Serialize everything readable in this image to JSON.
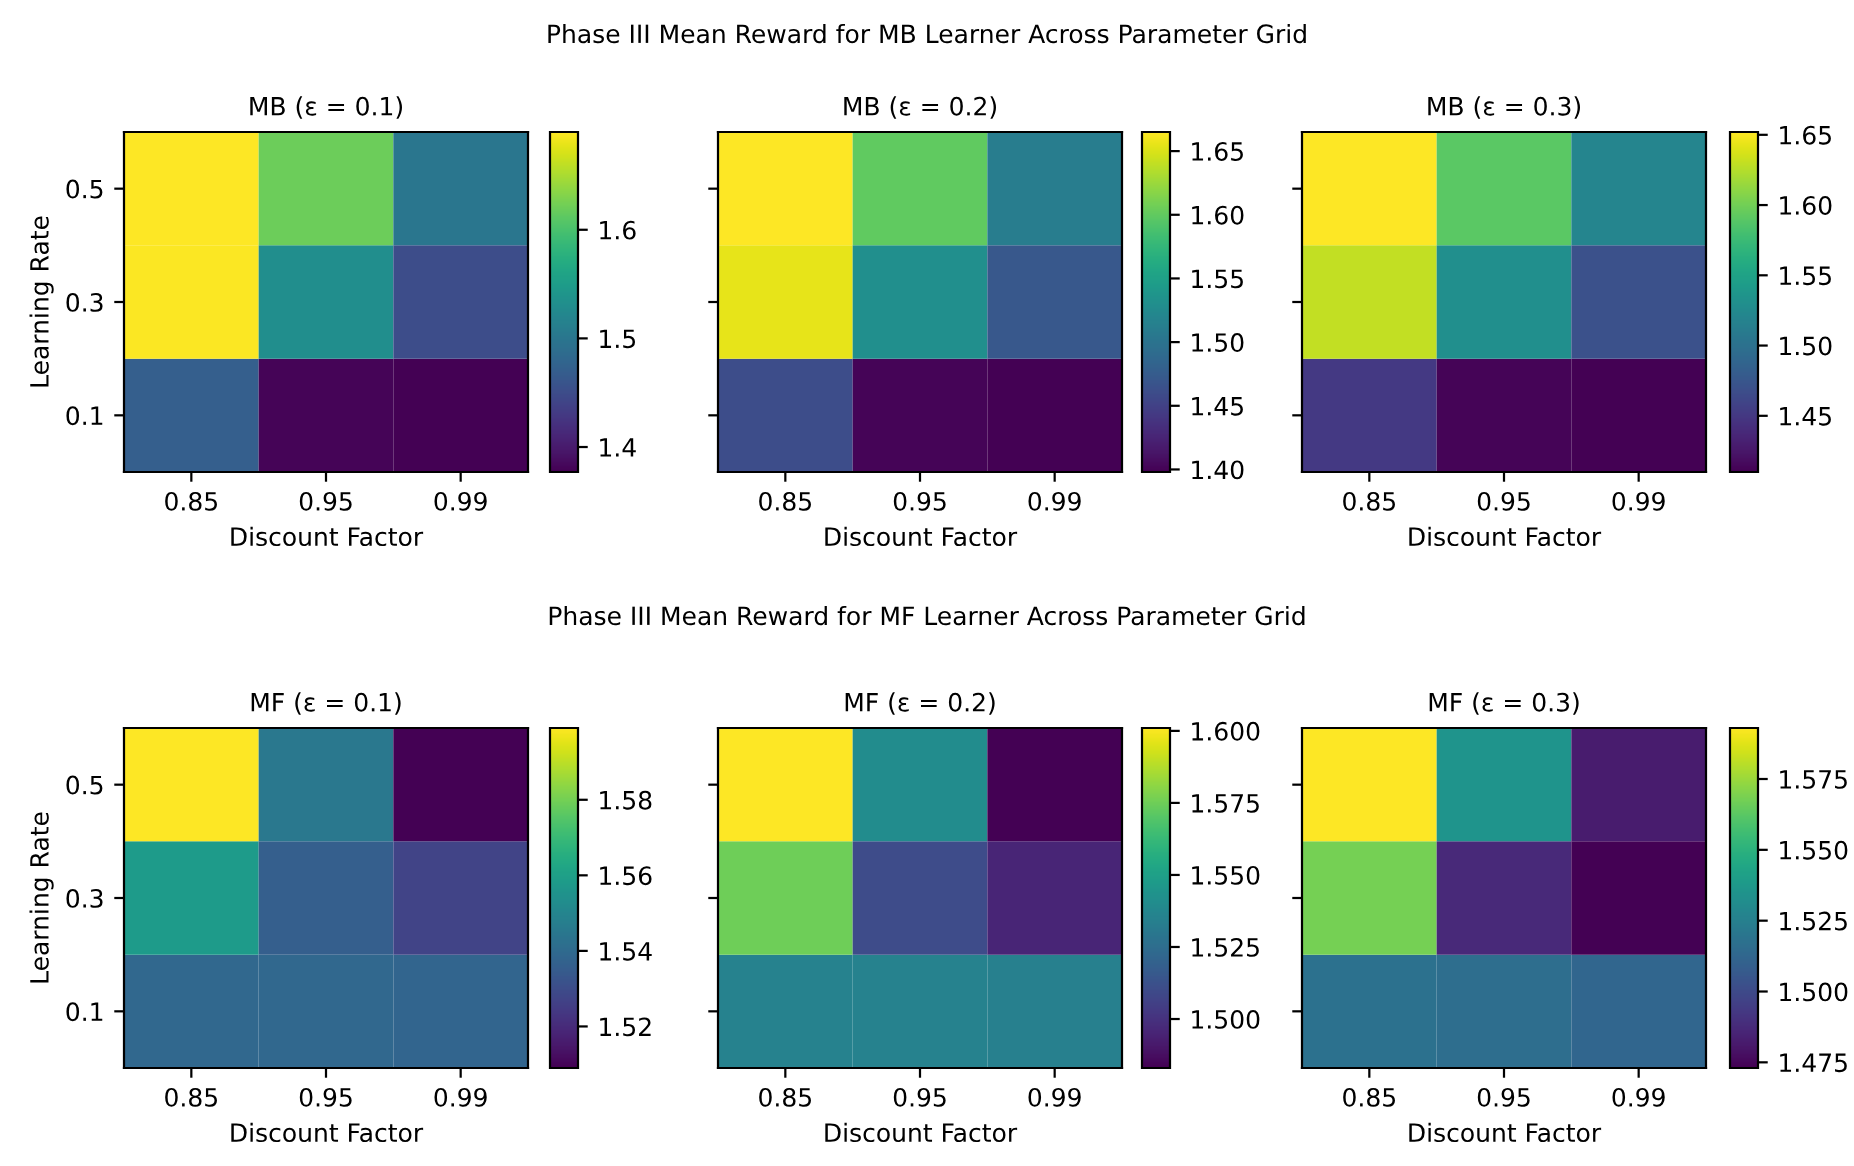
{
  "chart_data": [
    {
      "type": "heatmap",
      "title": "MB (ε = 0.1)",
      "annotations": [
        "Phase III Mean Reward for MB Learner Across Parameter Grid"
      ],
      "xlabel": "Discount Factor",
      "ylabel": "Learning Rate",
      "categories": [
        "0.85",
        "0.95",
        "0.99"
      ],
      "y_categories": [
        "0.5",
        "0.3",
        "0.1"
      ],
      "cells": [
        [
          1.69,
          1.62,
          1.5
        ],
        [
          1.688,
          1.53,
          1.45
        ],
        [
          1.47,
          1.38,
          1.377
        ]
      ],
      "clim": [
        1.377,
        1.69
      ],
      "cticks": [
        {
          "value": 1.4,
          "label": "1.4"
        },
        {
          "value": 1.5,
          "label": "1.5"
        },
        {
          "value": 1.6,
          "label": "1.6"
        }
      ]
    },
    {
      "type": "heatmap",
      "title": "MB (ε = 0.2)",
      "xlabel": "Discount Factor",
      "categories": [
        "0.85",
        "0.95",
        "0.99"
      ],
      "y_categories": [
        "0.5",
        "0.3",
        "0.1"
      ],
      "tick_labels": "x",
      "cells": [
        [
          1.665,
          1.6,
          1.51
        ],
        [
          1.655,
          1.53,
          1.47
        ],
        [
          1.46,
          1.401,
          1.398
        ]
      ],
      "clim": [
        1.398,
        1.665
      ],
      "cticks": [
        {
          "value": 1.4,
          "label": "1.40"
        },
        {
          "value": 1.45,
          "label": "1.45"
        },
        {
          "value": 1.5,
          "label": "1.50"
        },
        {
          "value": 1.55,
          "label": "1.55"
        },
        {
          "value": 1.6,
          "label": "1.60"
        },
        {
          "value": 1.65,
          "label": "1.65"
        }
      ]
    },
    {
      "type": "heatmap",
      "title": "MB (ε = 0.3)",
      "xlabel": "Discount Factor",
      "categories": [
        "0.85",
        "0.95",
        "0.99"
      ],
      "y_categories": [
        "0.5",
        "0.3",
        "0.1"
      ],
      "tick_labels": "x",
      "cells": [
        [
          1.652,
          1.59,
          1.52
        ],
        [
          1.63,
          1.53,
          1.47
        ],
        [
          1.45,
          1.412,
          1.41
        ]
      ],
      "clim": [
        1.41,
        1.652
      ],
      "cticks": [
        {
          "value": 1.45,
          "label": "1.45"
        },
        {
          "value": 1.5,
          "label": "1.50"
        },
        {
          "value": 1.55,
          "label": "1.55"
        },
        {
          "value": 1.6,
          "label": "1.60"
        },
        {
          "value": 1.65,
          "label": "1.65"
        }
      ]
    },
    {
      "type": "heatmap",
      "title": "MF (ε = 0.1)",
      "annotations": [
        "Phase III Mean Reward for MF Learner Across Parameter Grid"
      ],
      "xlabel": "Discount Factor",
      "ylabel": "Learning Rate",
      "categories": [
        "0.85",
        "0.95",
        "0.99"
      ],
      "y_categories": [
        "0.5",
        "0.3",
        "0.1"
      ],
      "cells": [
        [
          1.599,
          1.545,
          1.509
        ],
        [
          1.558,
          1.536,
          1.527
        ],
        [
          1.539,
          1.539,
          1.538
        ]
      ],
      "clim": [
        1.509,
        1.599
      ],
      "cticks": [
        1.52,
        1.54,
        1.56,
        1.58
      ]
    },
    {
      "type": "heatmap",
      "title": "MF (ε = 0.2)",
      "xlabel": "Discount Factor",
      "categories": [
        "0.85",
        "0.95",
        "0.99"
      ],
      "y_categories": [
        "0.5",
        "0.3",
        "0.1"
      ],
      "tick_labels": "x",
      "cells": [
        [
          1.601,
          1.54,
          1.483
        ],
        [
          1.575,
          1.51,
          1.495
        ],
        [
          1.535,
          1.535,
          1.534
        ]
      ],
      "clim": [
        1.483,
        1.601
      ],
      "cticks": [
        {
          "value": 1.5,
          "label": "1.500"
        },
        {
          "value": 1.525,
          "label": "1.525"
        },
        {
          "value": 1.55,
          "label": "1.550"
        },
        {
          "value": 1.575,
          "label": "1.575"
        },
        {
          "value": 1.6,
          "label": "1.600"
        }
      ]
    },
    {
      "type": "heatmap",
      "title": "MF (ε = 0.3)",
      "xlabel": "Discount Factor",
      "categories": [
        "0.85",
        "0.95",
        "0.99"
      ],
      "y_categories": [
        "0.5",
        "0.3",
        "0.1"
      ],
      "tick_labels": "x",
      "cells": [
        [
          1.593,
          1.535,
          1.482
        ],
        [
          1.568,
          1.487,
          1.473
        ],
        [
          1.518,
          1.516,
          1.512
        ]
      ],
      "clim": [
        1.473,
        1.593
      ],
      "cticks": [
        {
          "value": 1.475,
          "label": "1.475"
        },
        {
          "value": 1.5,
          "label": "1.500"
        },
        {
          "value": 1.525,
          "label": "1.525"
        },
        {
          "value": 1.55,
          "label": "1.550"
        },
        {
          "value": 1.575,
          "label": "1.575"
        }
      ]
    }
  ]
}
